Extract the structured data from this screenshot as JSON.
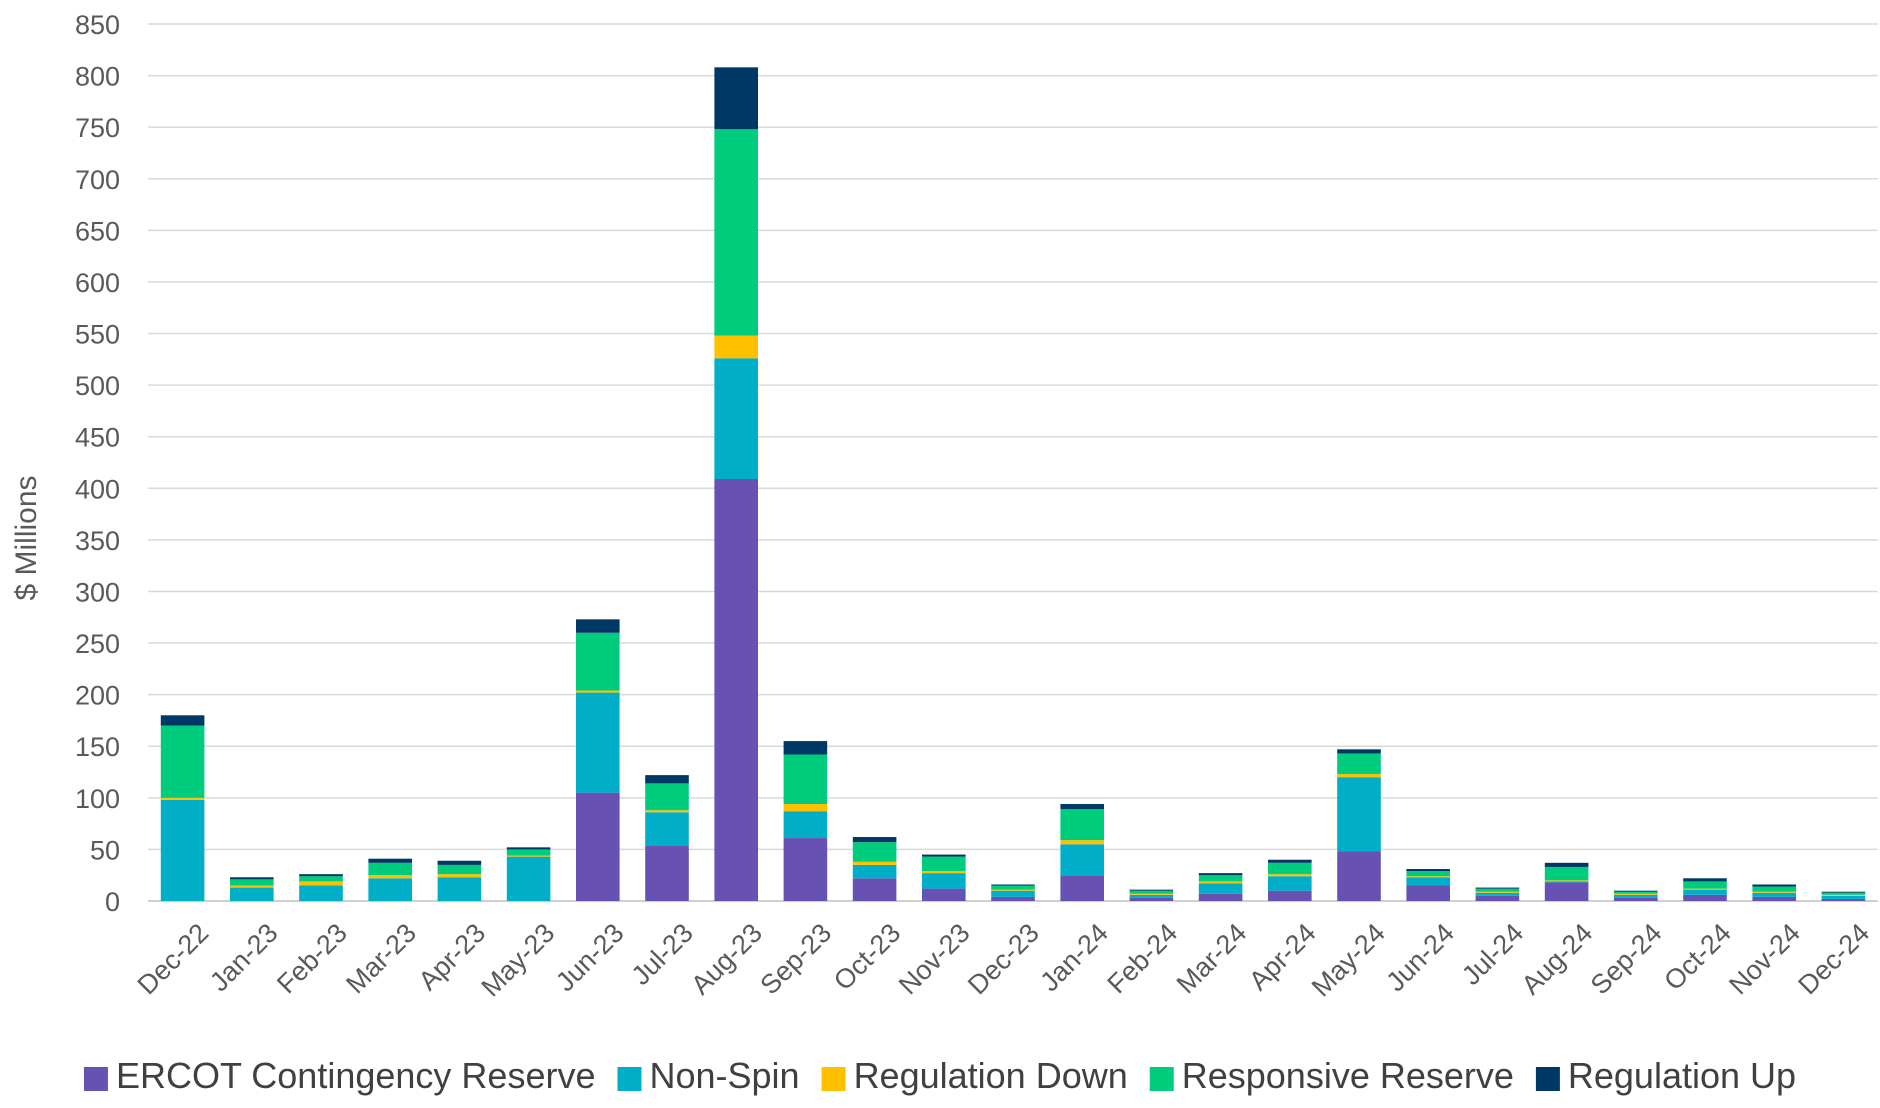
{
  "chart_data": {
    "type": "bar",
    "stacked": true,
    "title": "",
    "xlabel": "",
    "ylabel": "$ Millions",
    "ylim": [
      0,
      850
    ],
    "ytick_step": 50,
    "grid": true,
    "legend_position": "bottom",
    "categories": [
      "Dec-22",
      "Jan-23",
      "Feb-23",
      "Mar-23",
      "Apr-23",
      "May-23",
      "Jun-23",
      "Jul-23",
      "Aug-23",
      "Sep-23",
      "Oct-23",
      "Nov-23",
      "Dec-23",
      "Jan-24",
      "Feb-24",
      "Mar-24",
      "Apr-24",
      "May-24",
      "Jun-24",
      "Jul-24",
      "Aug-24",
      "Sep-24",
      "Oct-24",
      "Nov-24",
      "Dec-24"
    ],
    "series": [
      {
        "name": "ERCOT Contingency Reserve",
        "color": "#6752B4",
        "values": [
          0,
          0,
          0,
          0,
          0,
          0,
          105,
          54,
          409,
          61,
          22,
          12,
          4,
          25,
          3,
          7,
          10,
          48,
          15,
          5,
          18,
          3,
          6,
          4,
          2
        ]
      },
      {
        "name": "Non-Spin",
        "color": "#00AEC7",
        "values": [
          98,
          13,
          15,
          22,
          23,
          43,
          97,
          32,
          117,
          26,
          13,
          15,
          6,
          30,
          3,
          10,
          14,
          72,
          8,
          3,
          1,
          3,
          5,
          4,
          3
        ]
      },
      {
        "name": "Regulation Down",
        "color": "#FFC000",
        "values": [
          2,
          2,
          4,
          3,
          3,
          1,
          2,
          2,
          22,
          7,
          3,
          2,
          1,
          4,
          1,
          2,
          2,
          3,
          1,
          1,
          1,
          1,
          1,
          1,
          1
        ]
      },
      {
        "name": "Responsive Reserve",
        "color": "#00CC7E",
        "values": [
          70,
          6,
          5,
          12,
          9,
          6,
          56,
          26,
          200,
          48,
          19,
          14,
          4,
          30,
          3,
          6,
          11,
          20,
          5,
          3,
          13,
          2,
          7,
          5,
          2
        ]
      },
      {
        "name": "Regulation Up",
        "color": "#003865",
        "values": [
          10,
          2,
          2,
          4,
          4,
          2,
          13,
          8,
          60,
          13,
          5,
          2,
          1,
          5,
          1,
          2,
          3,
          4,
          2,
          1,
          4,
          1,
          3,
          2,
          1
        ]
      }
    ]
  }
}
